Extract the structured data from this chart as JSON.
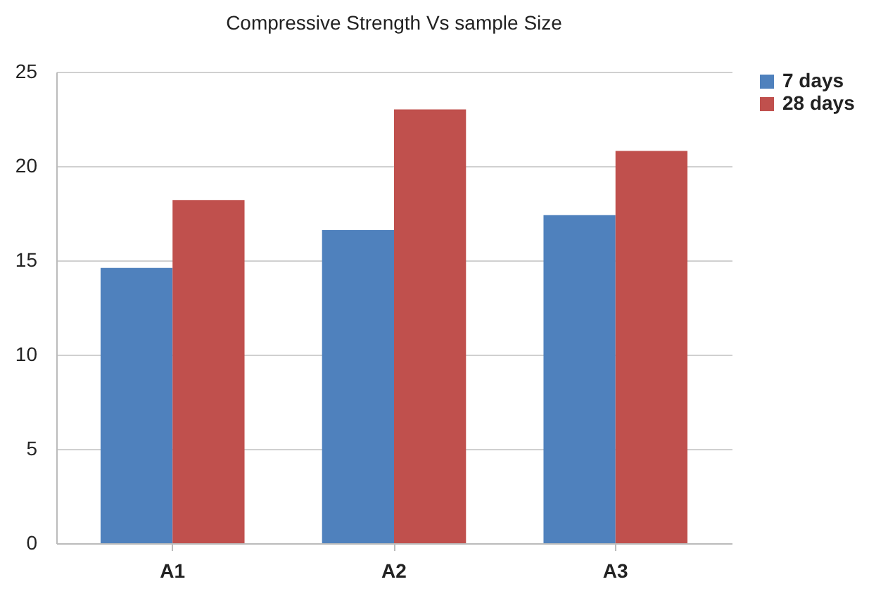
{
  "chart_data": {
    "type": "bar",
    "title": "Compressive Strength Vs sample Size",
    "categories": [
      "A1",
      "A2",
      "A3"
    ],
    "series": [
      {
        "name": "7 days",
        "color": "#4f81bd",
        "values": [
          14.6,
          16.6,
          17.4
        ]
      },
      {
        "name": "28 days",
        "color": "#c0504d",
        "values": [
          18.2,
          23.0,
          20.8
        ]
      }
    ],
    "ylim": [
      0,
      25
    ],
    "yticks": [
      0,
      5,
      10,
      15,
      20,
      25
    ],
    "grid": "y",
    "legend": "right"
  }
}
